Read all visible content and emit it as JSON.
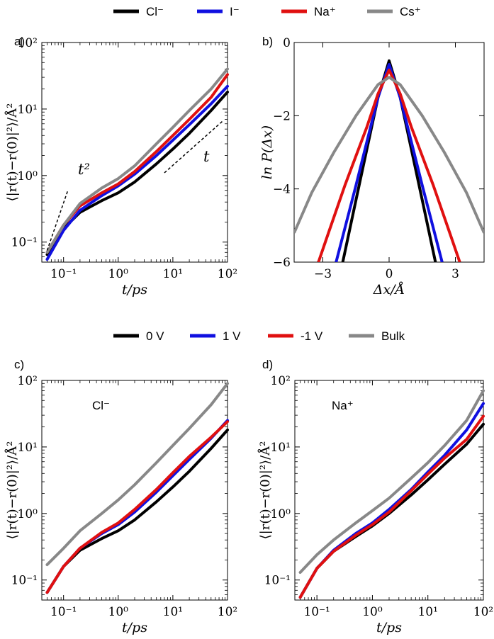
{
  "legends": {
    "top": [
      {
        "label": "Cl⁻",
        "color": "#000000"
      },
      {
        "label": "I⁻",
        "color": "#1010e0"
      },
      {
        "label": "Na⁺",
        "color": "#e01010"
      },
      {
        "label": "Cs⁺",
        "color": "#888888"
      }
    ],
    "bottom": [
      {
        "label": "0 V",
        "color": "#000000"
      },
      {
        "label": "1 V",
        "color": "#1010e0"
      },
      {
        "label": "-1 V",
        "color": "#e01010"
      },
      {
        "label": "Bulk",
        "color": "#888888"
      }
    ]
  },
  "panels": {
    "a": {
      "letter": "a)",
      "ylabel": "⟨|r(t)−r(0)|²⟩/Å²",
      "xlabel": "t/ps",
      "annot_t2": "t²",
      "annot_t": "t",
      "yticks": [
        "10⁻¹",
        "10⁰",
        "10¹",
        "10²"
      ],
      "xticks": [
        "10⁻¹",
        "10⁰",
        "10¹",
        "10²"
      ]
    },
    "b": {
      "letter": "b)",
      "ylabel": "ln P(Δx)",
      "xlabel": "Δx/Å",
      "yticks": [
        "0",
        "−2",
        "−4",
        "−6"
      ],
      "xticks": [
        "−3",
        "0",
        "3"
      ]
    },
    "c": {
      "letter": "c)",
      "inset": "Cl⁻",
      "ylabel": "⟨|r(t)−r(0)|²⟩/Å²",
      "xlabel": "t/ps",
      "yticks": [
        "10⁻¹",
        "10⁰",
        "10¹",
        "10²"
      ],
      "xticks": [
        "10⁻¹",
        "10⁰",
        "10¹",
        "10²"
      ]
    },
    "d": {
      "letter": "d)",
      "inset": "Na⁺",
      "ylabel": "⟨|r(t)−r(0)|²⟩/Å²",
      "xlabel": "t/ps",
      "yticks": [
        "10⁻¹",
        "10⁰",
        "10¹",
        "10²"
      ],
      "xticks": [
        "10⁻¹",
        "10⁰",
        "10¹",
        "10²"
      ]
    }
  },
  "chart_data": [
    {
      "panel": "a",
      "type": "line",
      "log_x": true,
      "log_y": true,
      "xlim": [
        0.04,
        100
      ],
      "ylim": [
        0.05,
        100
      ],
      "series": [
        {
          "name": "Cl⁻",
          "color": "#000000",
          "x": [
            0.05,
            0.1,
            0.2,
            0.5,
            1,
            2,
            5,
            10,
            20,
            50,
            100
          ],
          "y": [
            0.065,
            0.16,
            0.28,
            0.42,
            0.55,
            0.8,
            1.5,
            2.5,
            4.3,
            9.5,
            18
          ]
        },
        {
          "name": "I⁻",
          "color": "#1010e0",
          "x": [
            0.05,
            0.1,
            0.2,
            0.5,
            1,
            2,
            5,
            10,
            20,
            50,
            100
          ],
          "y": [
            0.055,
            0.15,
            0.3,
            0.5,
            0.7,
            1.05,
            2.0,
            3.4,
            5.8,
            12,
            22
          ]
        },
        {
          "name": "Na⁺",
          "color": "#e01010",
          "x": [
            0.05,
            0.1,
            0.2,
            0.5,
            1,
            2,
            5,
            10,
            20,
            50,
            100
          ],
          "y": [
            0.07,
            0.18,
            0.35,
            0.55,
            0.75,
            1.15,
            2.3,
            4.0,
            7.0,
            15,
            33
          ]
        },
        {
          "name": "Cs⁺",
          "color": "#888888",
          "x": [
            0.05,
            0.1,
            0.2,
            0.5,
            1,
            2,
            5,
            10,
            20,
            50,
            100
          ],
          "y": [
            0.07,
            0.18,
            0.38,
            0.65,
            0.9,
            1.4,
            3.0,
            5.3,
            9.5,
            20,
            40
          ]
        }
      ],
      "guides": [
        {
          "label": "t²",
          "x": [
            0.05,
            0.12
          ],
          "y": [
            0.075,
            0.6
          ]
        },
        {
          "label": "t",
          "x": [
            7,
            80
          ],
          "y": [
            1.1,
            6.5
          ]
        }
      ]
    },
    {
      "panel": "b",
      "type": "line",
      "xlim": [
        -4.3,
        4.3
      ],
      "ylim": [
        -6,
        0
      ],
      "series": [
        {
          "name": "Cl⁻",
          "color": "#000000",
          "x": [
            -2.1,
            -1.5,
            -1,
            -0.5,
            0,
            0.5,
            1,
            1.5,
            2.1
          ],
          "y": [
            -6,
            -4.3,
            -2.9,
            -1.5,
            -0.5,
            -1.5,
            -2.9,
            -4.3,
            -6
          ]
        },
        {
          "name": "I⁻",
          "color": "#1010e0",
          "x": [
            -2.4,
            -1.5,
            -1,
            -0.5,
            0,
            0.5,
            1,
            1.5,
            2.4
          ],
          "y": [
            -6,
            -3.9,
            -2.7,
            -1.5,
            -0.6,
            -1.5,
            -2.7,
            -3.9,
            -6
          ]
        },
        {
          "name": "Na⁺",
          "color": "#e01010",
          "x": [
            -3.2,
            -2.8,
            -2,
            -1,
            -0.5,
            0,
            0.5,
            1,
            2,
            2.8,
            3.2
          ],
          "y": [
            -6,
            -5.3,
            -3.9,
            -2.3,
            -1.4,
            -0.75,
            -1.4,
            -2.3,
            -3.9,
            -5.3,
            -6
          ]
        },
        {
          "name": "Cs⁺",
          "color": "#888888",
          "x": [
            -4.3,
            -3.5,
            -2.5,
            -1.5,
            -0.5,
            0,
            0.5,
            1.5,
            2.5,
            3.5,
            4.3
          ],
          "y": [
            -5.2,
            -4.1,
            -3.0,
            -2.0,
            -1.15,
            -0.95,
            -1.15,
            -2.0,
            -3.0,
            -4.1,
            -5.2
          ]
        }
      ]
    },
    {
      "panel": "c",
      "type": "line",
      "log_x": true,
      "log_y": true,
      "xlim": [
        0.04,
        100
      ],
      "ylim": [
        0.05,
        100
      ],
      "series": [
        {
          "name": "0 V",
          "color": "#000000",
          "x": [
            0.05,
            0.1,
            0.2,
            0.5,
            1,
            2,
            5,
            10,
            20,
            50,
            100
          ],
          "y": [
            0.065,
            0.16,
            0.28,
            0.42,
            0.55,
            0.8,
            1.5,
            2.5,
            4.3,
            9.5,
            18
          ]
        },
        {
          "name": "1 V",
          "color": "#1010e0",
          "x": [
            0.05,
            0.1,
            0.2,
            0.5,
            1,
            2,
            5,
            10,
            20,
            50,
            100
          ],
          "y": [
            0.065,
            0.16,
            0.3,
            0.5,
            0.68,
            1.05,
            2.1,
            3.7,
            6.5,
            13.5,
            25
          ]
        },
        {
          "name": "-1 V",
          "color": "#e01010",
          "x": [
            0.05,
            0.1,
            0.2,
            0.5,
            1,
            2,
            5,
            10,
            20,
            50,
            100
          ],
          "y": [
            0.065,
            0.16,
            0.3,
            0.52,
            0.72,
            1.15,
            2.3,
            4.1,
            7.2,
            14,
            24
          ]
        },
        {
          "name": "Bulk",
          "color": "#888888",
          "x": [
            0.05,
            0.1,
            0.2,
            0.5,
            1,
            2,
            5,
            10,
            20,
            50,
            100
          ],
          "y": [
            0.17,
            0.3,
            0.55,
            1.0,
            1.6,
            2.7,
            5.8,
            10.5,
            19,
            43,
            90
          ]
        }
      ]
    },
    {
      "panel": "d",
      "type": "line",
      "log_x": true,
      "log_y": true,
      "xlim": [
        0.04,
        100
      ],
      "ylim": [
        0.05,
        100
      ],
      "series": [
        {
          "name": "0 V",
          "color": "#000000",
          "x": [
            0.05,
            0.1,
            0.2,
            0.5,
            1,
            2,
            5,
            10,
            20,
            50,
            100
          ],
          "y": [
            0.055,
            0.15,
            0.27,
            0.45,
            0.65,
            1.0,
            1.9,
            3.2,
            5.5,
            11,
            22
          ]
        },
        {
          "name": "1 V",
          "color": "#1010e0",
          "x": [
            0.05,
            0.1,
            0.2,
            0.5,
            1,
            2,
            5,
            10,
            20,
            50,
            100
          ],
          "y": [
            0.055,
            0.15,
            0.28,
            0.5,
            0.72,
            1.15,
            2.3,
            4.2,
            7.5,
            18,
            45
          ]
        },
        {
          "name": "-1 V",
          "color": "#e01010",
          "x": [
            0.05,
            0.1,
            0.2,
            0.5,
            1,
            2,
            5,
            10,
            20,
            50,
            100
          ],
          "y": [
            0.055,
            0.15,
            0.27,
            0.47,
            0.68,
            1.05,
            2.2,
            3.9,
            6.8,
            13,
            29
          ]
        },
        {
          "name": "Bulk",
          "color": "#888888",
          "x": [
            0.05,
            0.1,
            0.2,
            0.5,
            1,
            2,
            5,
            10,
            20,
            50,
            100
          ],
          "y": [
            0.13,
            0.24,
            0.4,
            0.72,
            1.1,
            1.7,
            3.4,
            5.8,
            10.5,
            25,
            70
          ]
        }
      ]
    }
  ]
}
